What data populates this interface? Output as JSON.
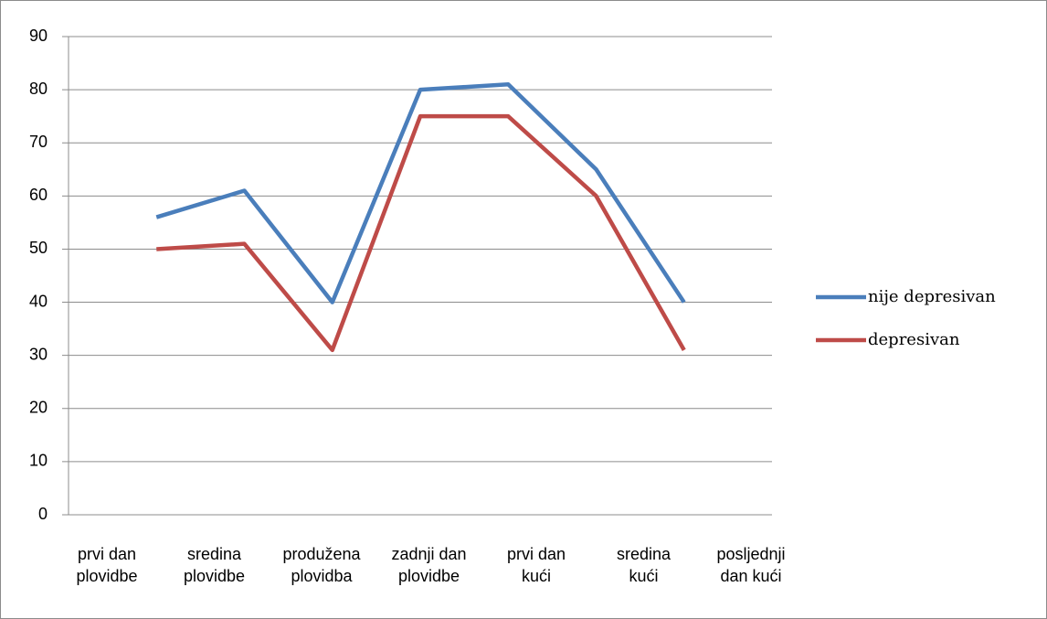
{
  "chart_data": {
    "type": "line",
    "categories": [
      "prvi dan plovidbe",
      "sredina plovidbe",
      "produžena plovidba",
      "zadnji dan plovidbe",
      "prvi dan kući",
      "sredina kući",
      "posljednji dan kući"
    ],
    "series": [
      {
        "name": "nije depresivan",
        "color": "#4a7ebb",
        "values": [
          56,
          61,
          40,
          80,
          81,
          65,
          40
        ]
      },
      {
        "name": "depresivan",
        "color": "#be4b48",
        "values": [
          50,
          51,
          31,
          75,
          75,
          60,
          31
        ]
      }
    ],
    "ylim": [
      0,
      90
    ],
    "yticks": [
      0,
      10,
      20,
      30,
      40,
      50,
      60,
      70,
      80,
      90
    ],
    "grid": true,
    "legend": "right"
  }
}
